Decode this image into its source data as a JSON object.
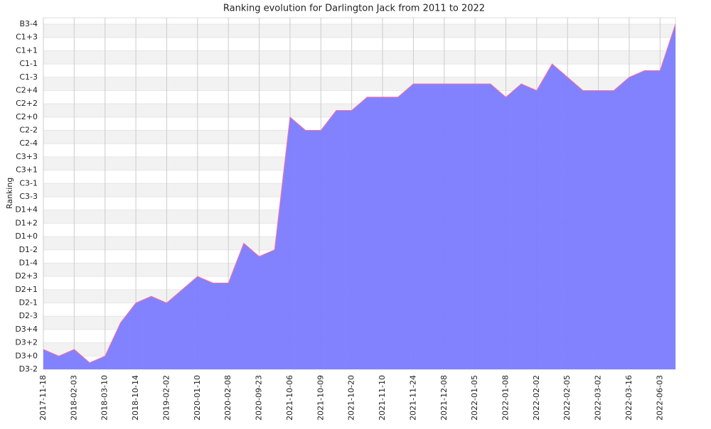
{
  "chart_data": {
    "type": "area",
    "title": "Ranking evolution for Darlington Jack from 2011 to 2022",
    "ylabel": "Ranking",
    "categories": [
      "2017-11-18",
      null,
      "2018-02-03",
      null,
      "2018-03-10",
      null,
      "2018-10-14",
      null,
      "2019-02-02",
      null,
      "2020-01-10",
      null,
      "2020-02-08",
      null,
      "2020-09-23",
      null,
      "2021-10-06",
      null,
      "2021-10-09",
      null,
      "2021-10-20",
      null,
      "2021-11-10",
      null,
      "2021-11-24",
      null,
      "2021-12-08",
      null,
      "2022-01-05",
      null,
      "2022-01-08",
      null,
      "2022-02-02",
      null,
      "2022-02-05",
      null,
      "2022-03-02",
      null,
      "2022-03-16",
      null,
      "2022-06-03",
      null
    ],
    "values": [
      3,
      2,
      3,
      1,
      2,
      7,
      10,
      11,
      10,
      12,
      14,
      13,
      13,
      19,
      17,
      18,
      38,
      36,
      36,
      39,
      39,
      41,
      41,
      41,
      43,
      43,
      43,
      43,
      43,
      43,
      41,
      43,
      42,
      46,
      44,
      42,
      42,
      42,
      44,
      45,
      45,
      52
    ],
    "color": "#7b7bff",
    "line_color": "#ff6f9a",
    "ylim": [
      0,
      52
    ],
    "yticks": [
      {
        "value": 0,
        "label": "D3-2"
      },
      {
        "value": 2,
        "label": "D3+0"
      },
      {
        "value": 4,
        "label": "D3+2"
      },
      {
        "value": 6,
        "label": "D3+4"
      },
      {
        "value": 8,
        "label": "D2-3"
      },
      {
        "value": 10,
        "label": "D2-1"
      },
      {
        "value": 12,
        "label": "D2+1"
      },
      {
        "value": 14,
        "label": "D2+3"
      },
      {
        "value": 16,
        "label": "D1-4"
      },
      {
        "value": 18,
        "label": "D1-2"
      },
      {
        "value": 20,
        "label": "D1+0"
      },
      {
        "value": 22,
        "label": "D1+2"
      },
      {
        "value": 24,
        "label": "D1+4"
      },
      {
        "value": 26,
        "label": "C3-3"
      },
      {
        "value": 28,
        "label": "C3-1"
      },
      {
        "value": 30,
        "label": "C3+1"
      },
      {
        "value": 32,
        "label": "C3+3"
      },
      {
        "value": 34,
        "label": "C2-4"
      },
      {
        "value": 36,
        "label": "C2-2"
      },
      {
        "value": 38,
        "label": "C2+0"
      },
      {
        "value": 40,
        "label": "C2+2"
      },
      {
        "value": 42,
        "label": "C2+4"
      },
      {
        "value": 44,
        "label": "C1-3"
      },
      {
        "value": 46,
        "label": "C1-1"
      },
      {
        "value": 48,
        "label": "C1+1"
      },
      {
        "value": 50,
        "label": "C1+3"
      },
      {
        "value": 52,
        "label": "B3-4"
      }
    ],
    "grid": true
  }
}
